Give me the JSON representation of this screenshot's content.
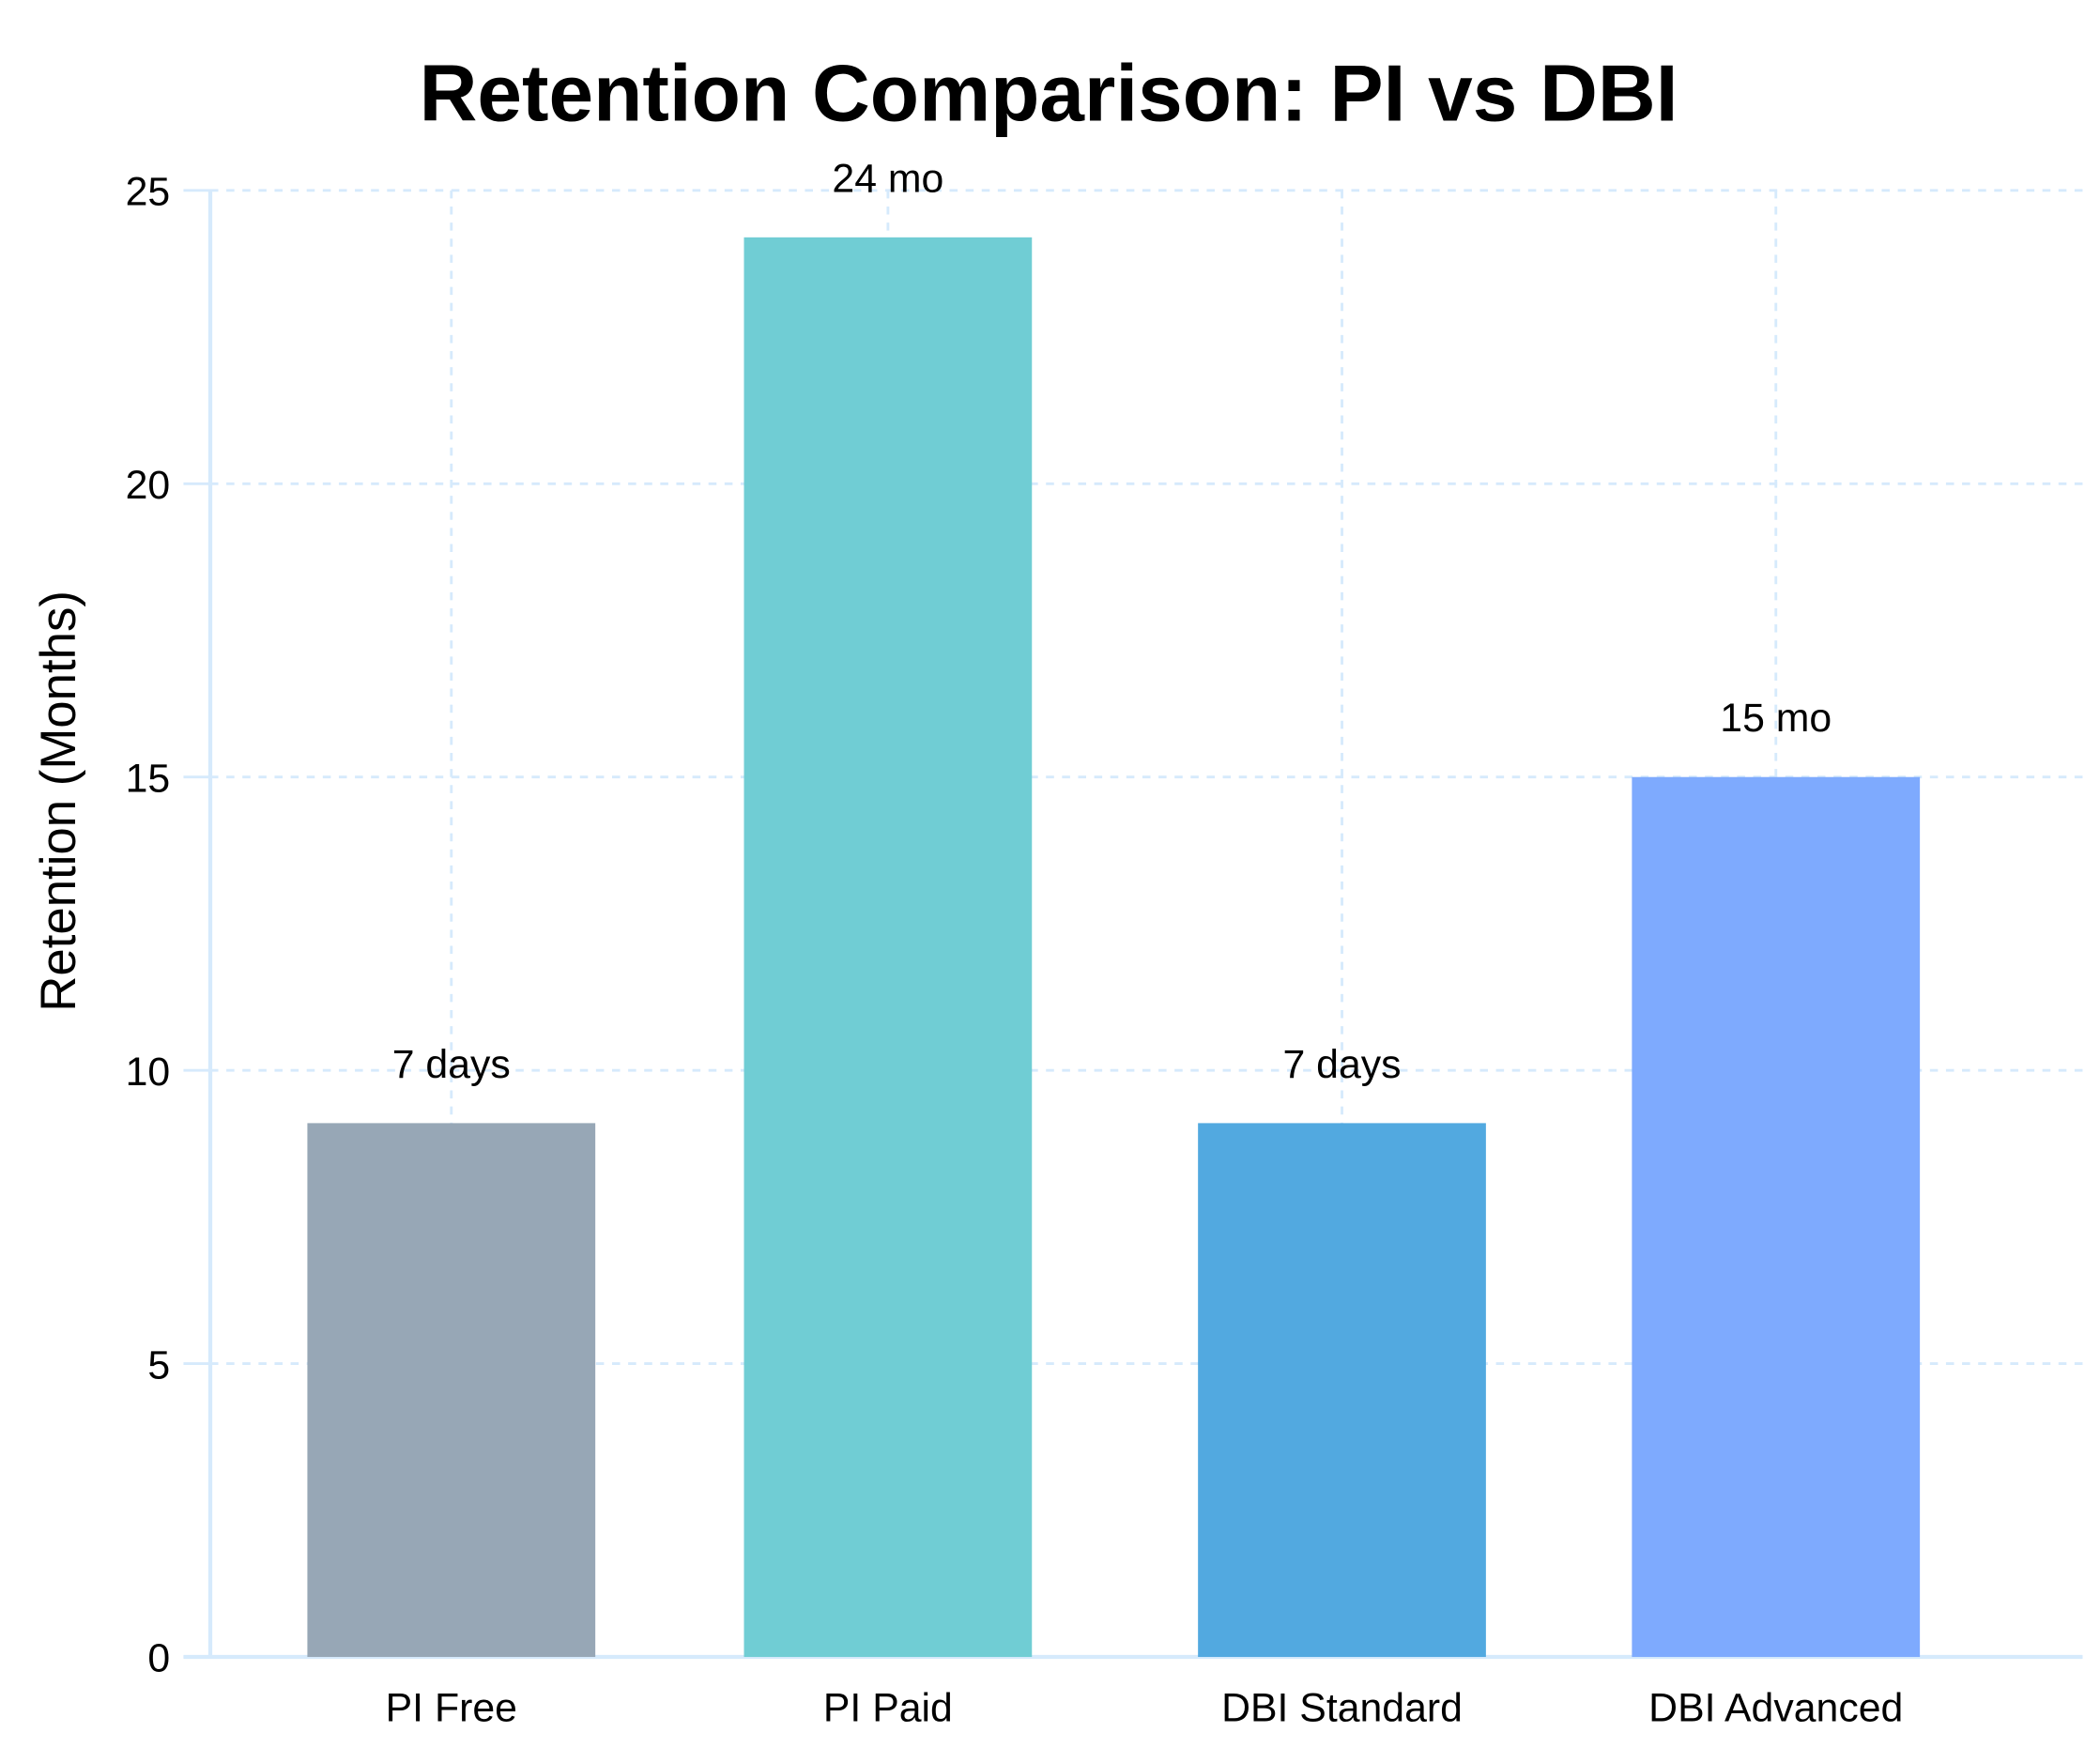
{
  "chart_data": {
    "type": "bar",
    "title": "Retention Comparison: PI vs DBI",
    "xlabel": "",
    "ylabel": "Retention (Months)",
    "ylim": [
      0,
      25
    ],
    "yticks": [
      "0",
      "5",
      "10",
      "15",
      "20",
      "25"
    ],
    "grid": true,
    "categories": [
      "PI Free",
      "PI Paid",
      "DBI Standard",
      "DBI Advanced"
    ],
    "values": [
      9.1,
      24.2,
      9.1,
      15.0
    ],
    "data_labels": [
      "7 days",
      "24 mo",
      "7 days",
      "15 mo"
    ],
    "colors": [
      "#97a7b6",
      "#70cdd4",
      "#52a9e0",
      "#7eaafe"
    ],
    "grid_color": "#d6eafc"
  }
}
